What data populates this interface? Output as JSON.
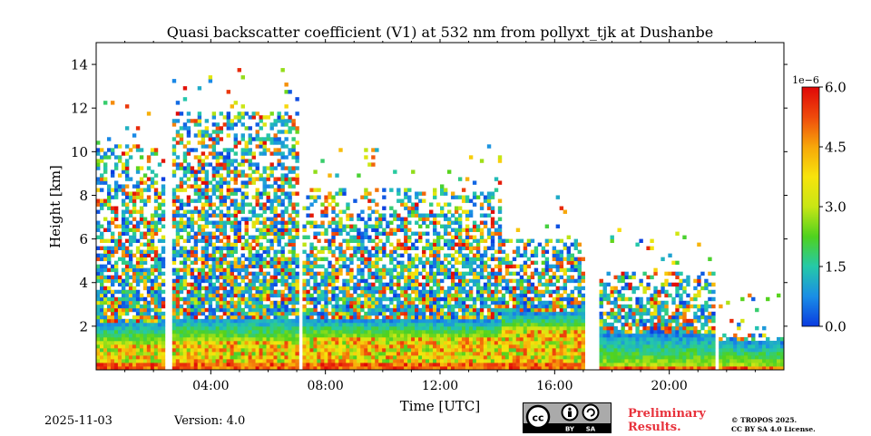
{
  "chart_data": {
    "type": "heatmap",
    "title": "Quasi backscatter coefficient (V1) at 532 nm from pollyxt_tjk at Dushanbe",
    "xlabel": "Time [UTC]",
    "ylabel": "Height [km]",
    "xlim_hours": [
      0,
      24
    ],
    "ylim_km": [
      0,
      15
    ],
    "x_ticks": [
      {
        "value": 4,
        "label": "04:00"
      },
      {
        "value": 8,
        "label": "08:00"
      },
      {
        "value": 12,
        "label": "12:00"
      },
      {
        "value": 16,
        "label": "16:00"
      },
      {
        "value": 20,
        "label": "20:00"
      }
    ],
    "y_ticks": [
      {
        "value": 2,
        "label": "2"
      },
      {
        "value": 4,
        "label": "4"
      },
      {
        "value": 6,
        "label": "6"
      },
      {
        "value": 8,
        "label": "8"
      },
      {
        "value": 10,
        "label": "10"
      },
      {
        "value": 12,
        "label": "12"
      },
      {
        "value": 14,
        "label": "14"
      }
    ],
    "colorbar": {
      "min": 0.0,
      "max": 6.0,
      "exponent_label": "1e−6",
      "ticks": [
        {
          "value": 0.0,
          "label": "0.0"
        },
        {
          "value": 1.5,
          "label": "1.5"
        },
        {
          "value": 3.0,
          "label": "3.0"
        },
        {
          "value": 4.5,
          "label": "4.5"
        },
        {
          "value": 6.0,
          "label": "6.0"
        }
      ],
      "colormap": [
        "#0a3be0",
        "#1a8ee6",
        "#25c9a8",
        "#4fd21e",
        "#c8e615",
        "#f7e40c",
        "#f7a70a",
        "#ef4a0c",
        "#e00707"
      ]
    },
    "data_gaps_hours": [
      [
        2.45,
        2.6
      ],
      [
        7.05,
        7.15
      ],
      [
        17.0,
        17.6
      ],
      [
        21.6,
        21.75
      ]
    ],
    "segments": [
      {
        "t0": 0.0,
        "t1": 2.45,
        "pbl_top_km": 1.2,
        "layer_top_km": 2.2,
        "cloud_top_km": 10.3
      },
      {
        "t0": 2.6,
        "t1": 7.05,
        "pbl_top_km": 1.3,
        "layer_top_km": 2.4,
        "cloud_top_km": 11.8
      },
      {
        "t0": 7.15,
        "t1": 14.2,
        "pbl_top_km": 1.5,
        "layer_top_km": 2.3,
        "cloud_top_km": 8.3
      },
      {
        "t0": 14.2,
        "t1": 17.0,
        "pbl_top_km": 1.9,
        "layer_top_km": 2.6,
        "cloud_top_km": 6.0
      },
      {
        "t0": 17.6,
        "t1": 21.6,
        "pbl_top_km": 0.2,
        "layer_top_km": 1.6,
        "cloud_top_km": 4.5
      },
      {
        "t0": 21.75,
        "t1": 24.0,
        "pbl_top_km": 0.2,
        "layer_top_km": 1.3,
        "cloud_top_km": 1.6
      }
    ]
  },
  "footer": {
    "date": "2025-11-03",
    "version": "Version: 4.0",
    "license_badge": {
      "cc": "cc",
      "by": "BY",
      "sa": "SA"
    },
    "preliminary_line1": "Preliminary",
    "preliminary_line2": "Results.",
    "copyright_line1": "© TROPOS 2025.",
    "copyright_line2": "CC BY SA 4.0 License."
  }
}
